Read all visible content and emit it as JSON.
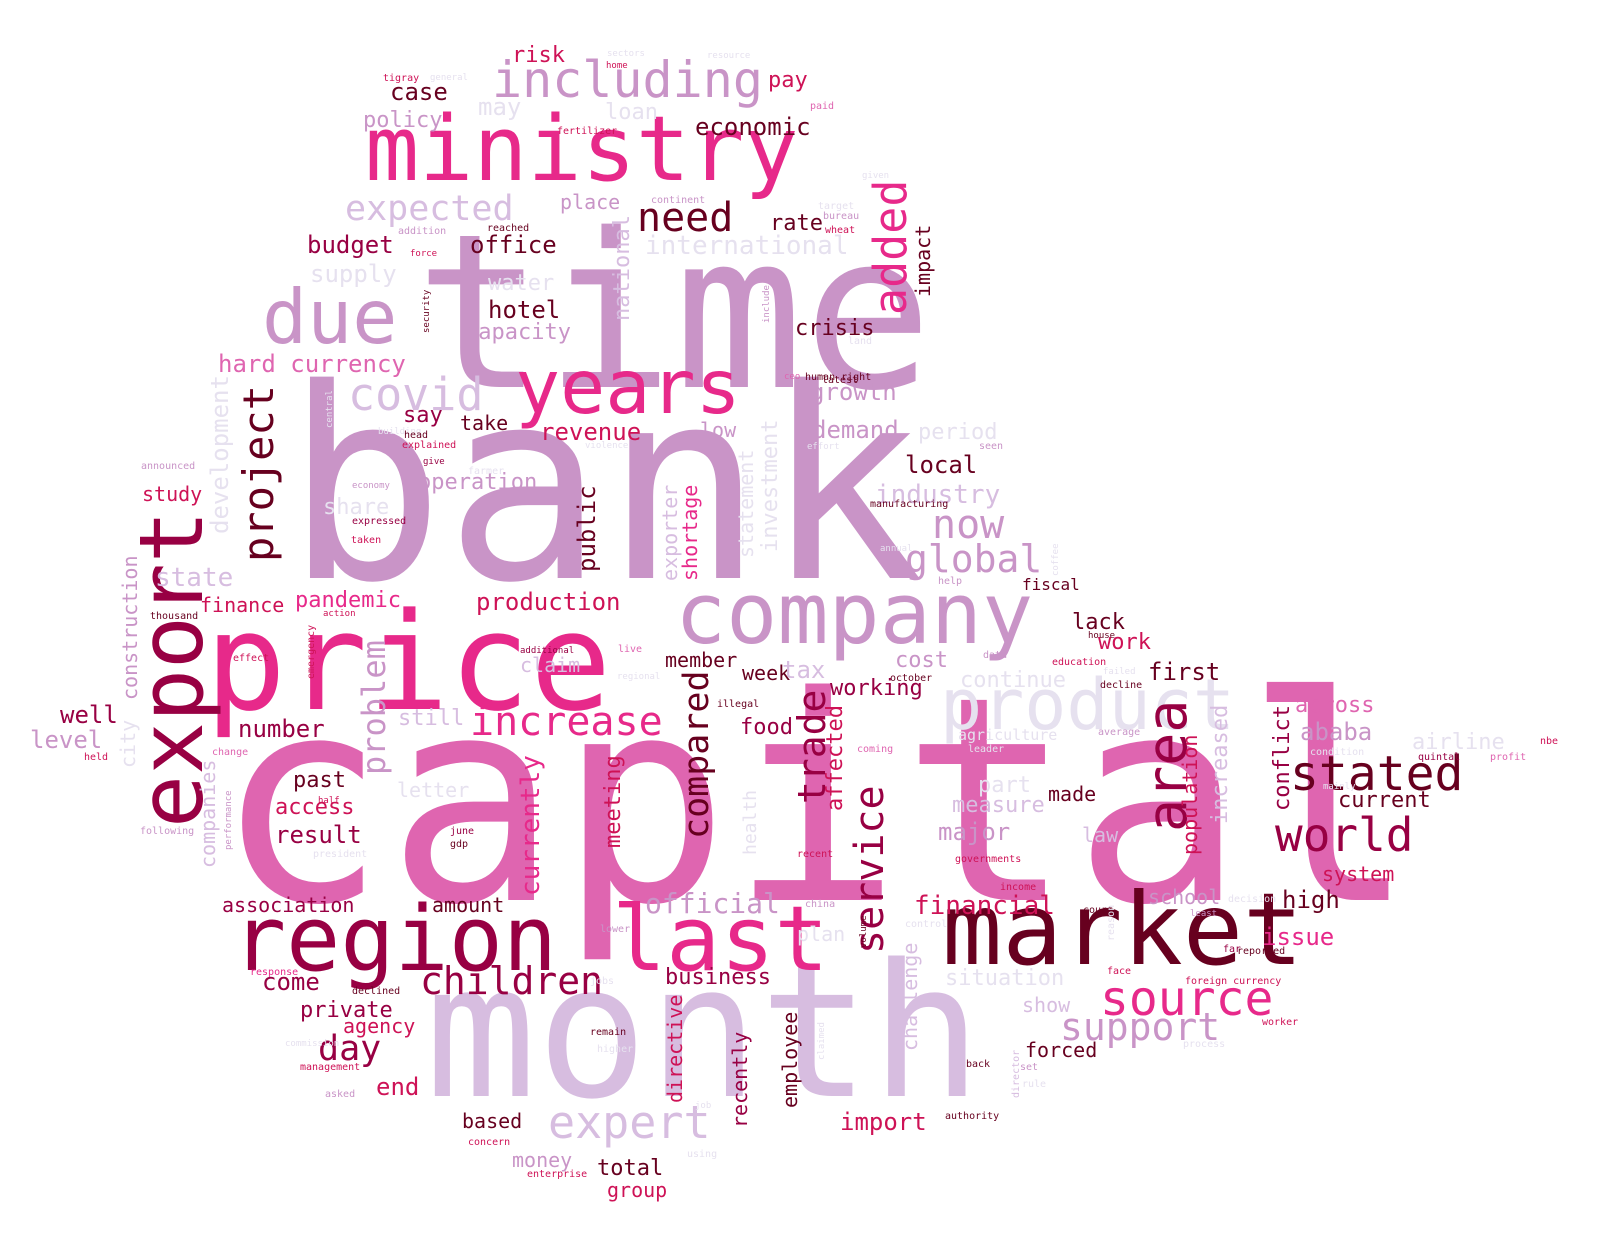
{
  "palette": {
    "pale": "#e6e1ef",
    "lilac": "#d7bde0",
    "mauve": "#c994c7",
    "pink": "#df65b0",
    "magenta": "#e7298a",
    "crimson": "#ce1256",
    "wine": "#980043",
    "dark": "#67001f"
  },
  "words": [
    {
      "text": "capital",
      "color": "pink"
    },
    {
      "text": "bank",
      "color": "mauve"
    },
    {
      "text": "time",
      "color": "mauve"
    },
    {
      "text": "month",
      "color": "lilac"
    },
    {
      "text": "price",
      "color": "magenta"
    },
    {
      "text": "market",
      "color": "dark"
    },
    {
      "text": "region",
      "color": "wine"
    },
    {
      "text": "last",
      "color": "magenta"
    },
    {
      "text": "company",
      "color": "mauve"
    },
    {
      "text": "ministry",
      "color": "magenta"
    },
    {
      "text": "years",
      "color": "magenta"
    },
    {
      "text": "export",
      "color": "wine"
    },
    {
      "text": "product",
      "color": "pale"
    },
    {
      "text": "due",
      "color": "mauve"
    },
    {
      "text": "including",
      "color": "mauve"
    },
    {
      "text": "added",
      "color": "magenta"
    },
    {
      "text": "area",
      "color": "wine"
    },
    {
      "text": "stated",
      "color": "dark"
    },
    {
      "text": "world",
      "color": "wine"
    },
    {
      "text": "source",
      "color": "magenta"
    },
    {
      "text": "expert",
      "color": "lilac"
    },
    {
      "text": "increase",
      "color": "magenta"
    },
    {
      "text": "children",
      "color": "wine"
    },
    {
      "text": "service",
      "color": "wine"
    },
    {
      "text": "project",
      "color": "dark"
    },
    {
      "text": "covid",
      "color": "lilac"
    },
    {
      "text": "now",
      "color": "mauve"
    },
    {
      "text": "global",
      "color": "mauve"
    },
    {
      "text": "need",
      "color": "dark"
    },
    {
      "text": "expected",
      "color": "lilac"
    },
    {
      "text": "support",
      "color": "mauve"
    },
    {
      "text": "day",
      "color": "wine"
    },
    {
      "text": "trade",
      "color": "wine"
    },
    {
      "text": "compared",
      "color": "dark"
    },
    {
      "text": "problem",
      "color": "mauve"
    },
    {
      "text": "official",
      "color": "mauve"
    },
    {
      "text": "currently",
      "color": "magenta"
    },
    {
      "text": "economic",
      "color": "dark"
    },
    {
      "text": "international",
      "color": "pale"
    },
    {
      "text": "office",
      "color": "dark"
    },
    {
      "text": "budget",
      "color": "wine"
    },
    {
      "text": "rate",
      "color": "dark"
    },
    {
      "text": "case",
      "color": "dark"
    },
    {
      "text": "risk",
      "color": "crimson"
    },
    {
      "text": "pay",
      "color": "crimson"
    },
    {
      "text": "may",
      "color": "pale"
    },
    {
      "text": "loan",
      "color": "pale"
    },
    {
      "text": "policy",
      "color": "mauve"
    },
    {
      "text": "place",
      "color": "mauve"
    },
    {
      "text": "supply",
      "color": "pale"
    },
    {
      "text": "hotel",
      "color": "dark"
    },
    {
      "text": "water",
      "color": "pale"
    },
    {
      "text": "capacity",
      "color": "mauve"
    },
    {
      "text": "national",
      "color": "lilac"
    },
    {
      "text": "impact",
      "color": "dark"
    },
    {
      "text": "crisis",
      "color": "dark"
    },
    {
      "text": "hard currency",
      "color": "pink"
    },
    {
      "text": "say",
      "color": "wine"
    },
    {
      "text": "take",
      "color": "dark"
    },
    {
      "text": "revenue",
      "color": "crimson"
    },
    {
      "text": "growth",
      "color": "mauve"
    },
    {
      "text": "demand",
      "color": "mauve"
    },
    {
      "text": "period",
      "color": "pale"
    },
    {
      "text": "low",
      "color": "mauve"
    },
    {
      "text": "local",
      "color": "dark"
    },
    {
      "text": "industry",
      "color": "lilac"
    },
    {
      "text": "operation",
      "color": "mauve"
    },
    {
      "text": "development",
      "color": "pale"
    },
    {
      "text": "study",
      "color": "crimson"
    },
    {
      "text": "share",
      "color": "pale"
    },
    {
      "text": "public",
      "color": "dark"
    },
    {
      "text": "exporter",
      "color": "lilac"
    },
    {
      "text": "shortage",
      "color": "magenta"
    },
    {
      "text": "statement",
      "color": "pale"
    },
    {
      "text": "investment",
      "color": "pale"
    },
    {
      "text": "state",
      "color": "lilac"
    },
    {
      "text": "pandemic",
      "color": "magenta"
    },
    {
      "text": "production",
      "color": "crimson"
    },
    {
      "text": "finance",
      "color": "crimson"
    },
    {
      "text": "construction",
      "color": "mauve"
    },
    {
      "text": "lack",
      "color": "dark"
    },
    {
      "text": "work",
      "color": "crimson"
    },
    {
      "text": "cost",
      "color": "mauve"
    },
    {
      "text": "member",
      "color": "dark"
    },
    {
      "text": "week",
      "color": "dark"
    },
    {
      "text": "tax",
      "color": "lilac"
    },
    {
      "text": "claim",
      "color": "lilac"
    },
    {
      "text": "working",
      "color": "wine"
    },
    {
      "text": "continue",
      "color": "pale"
    },
    {
      "text": "first",
      "color": "dark"
    },
    {
      "text": "well",
      "color": "wine"
    },
    {
      "text": "level",
      "color": "mauve"
    },
    {
      "text": "number",
      "color": "wine"
    },
    {
      "text": "still",
      "color": "lilac"
    },
    {
      "text": "food",
      "color": "wine"
    },
    {
      "text": "affected",
      "color": "crimson"
    },
    {
      "text": "across",
      "color": "pink"
    },
    {
      "text": "ababa",
      "color": "mauve"
    },
    {
      "text": "airline",
      "color": "pale"
    },
    {
      "text": "agriculture",
      "color": "pale"
    },
    {
      "text": "city",
      "color": "pale"
    },
    {
      "text": "past",
      "color": "dark"
    },
    {
      "text": "access",
      "color": "crimson"
    },
    {
      "text": "result",
      "color": "wine"
    },
    {
      "text": "letter",
      "color": "pale"
    },
    {
      "text": "part",
      "color": "pale"
    },
    {
      "text": "measure",
      "color": "lilac"
    },
    {
      "text": "major",
      "color": "mauve"
    },
    {
      "text": "made",
      "color": "dark"
    },
    {
      "text": "law",
      "color": "lilac"
    },
    {
      "text": "current",
      "color": "dark"
    },
    {
      "text": "conflict",
      "color": "wine"
    },
    {
      "text": "population",
      "color": "crimson"
    },
    {
      "text": "increased",
      "color": "lilac"
    },
    {
      "text": "companies",
      "color": "lilac"
    },
    {
      "text": "meeting",
      "color": "crimson"
    },
    {
      "text": "health",
      "color": "pale"
    },
    {
      "text": "system",
      "color": "crimson"
    },
    {
      "text": "association",
      "color": "wine"
    },
    {
      "text": "amount",
      "color": "dark"
    },
    {
      "text": "financial",
      "color": "crimson"
    },
    {
      "text": "high",
      "color": "dark"
    },
    {
      "text": "school",
      "color": "mauve"
    },
    {
      "text": "issue",
      "color": "magenta"
    },
    {
      "text": "business",
      "color": "wine"
    },
    {
      "text": "plan",
      "color": "pale"
    },
    {
      "text": "challenge",
      "color": "lilac"
    },
    {
      "text": "situation",
      "color": "pale"
    },
    {
      "text": "come",
      "color": "wine"
    },
    {
      "text": "private",
      "color": "wine"
    },
    {
      "text": "agency",
      "color": "crimson"
    },
    {
      "text": "show",
      "color": "lilac"
    },
    {
      "text": "forced",
      "color": "dark"
    },
    {
      "text": "directive",
      "color": "crimson"
    },
    {
      "text": "employee",
      "color": "dark"
    },
    {
      "text": "recently",
      "color": "wine"
    },
    {
      "text": "end",
      "color": "crimson"
    },
    {
      "text": "import",
      "color": "crimson"
    },
    {
      "text": "based",
      "color": "dark"
    },
    {
      "text": "money",
      "color": "mauve"
    },
    {
      "text": "total",
      "color": "dark"
    },
    {
      "text": "group",
      "color": "crimson"
    },
    {
      "text": "human right",
      "color": "dark"
    },
    {
      "text": "manufacturing",
      "color": "dark"
    },
    {
      "text": "foreign currency",
      "color": "crimson"
    },
    {
      "text": "tigray",
      "color": "crimson"
    },
    {
      "text": "general",
      "color": "pale"
    },
    {
      "text": "home",
      "color": "crimson"
    },
    {
      "text": "sectors",
      "color": "pale"
    },
    {
      "text": "resource",
      "color": "pale"
    },
    {
      "text": "paid",
      "color": "pink"
    },
    {
      "text": "fertilizer",
      "color": "crimson"
    },
    {
      "text": "continent",
      "color": "mauve"
    },
    {
      "text": "given",
      "color": "pale"
    },
    {
      "text": "target",
      "color": "pale"
    },
    {
      "text": "bureau",
      "color": "mauve"
    },
    {
      "text": "wheat",
      "color": "crimson"
    },
    {
      "text": "reached",
      "color": "dark"
    },
    {
      "text": "addition",
      "color": "mauve"
    },
    {
      "text": "force",
      "color": "crimson"
    },
    {
      "text": "security",
      "color": "dark"
    },
    {
      "text": "include",
      "color": "mauve"
    },
    {
      "text": "land",
      "color": "pale"
    },
    {
      "text": "ceo",
      "color": "pink"
    },
    {
      "text": "latest",
      "color": "dark"
    },
    {
      "text": "central",
      "color": "pale"
    },
    {
      "text": "building",
      "color": "pale"
    },
    {
      "text": "head",
      "color": "dark"
    },
    {
      "text": "explained",
      "color": "crimson"
    },
    {
      "text": "violence",
      "color": "pale"
    },
    {
      "text": "effort",
      "color": "pale"
    },
    {
      "text": "seen",
      "color": "mauve"
    },
    {
      "text": "give",
      "color": "wine"
    },
    {
      "text": "farmer",
      "color": "pale"
    },
    {
      "text": "announced",
      "color": "mauve"
    },
    {
      "text": "economy",
      "color": "mauve"
    },
    {
      "text": "expressed",
      "color": "wine"
    },
    {
      "text": "taken",
      "color": "crimson"
    },
    {
      "text": "annual",
      "color": "pale"
    },
    {
      "text": "coffee",
      "color": "pale"
    },
    {
      "text": "help",
      "color": "mauve"
    },
    {
      "text": "fiscal",
      "color": "dark"
    },
    {
      "text": "thousand",
      "color": "dark"
    },
    {
      "text": "action",
      "color": "crimson"
    },
    {
      "text": "emergency",
      "color": "crimson"
    },
    {
      "text": "additional",
      "color": "wine"
    },
    {
      "text": "live",
      "color": "pink"
    },
    {
      "text": "regional",
      "color": "pale"
    },
    {
      "text": "illegal",
      "color": "dark"
    },
    {
      "text": "october",
      "color": "dark"
    },
    {
      "text": "data",
      "color": "mauve"
    },
    {
      "text": "house",
      "color": "dark"
    },
    {
      "text": "education",
      "color": "crimson"
    },
    {
      "text": "failed",
      "color": "pale"
    },
    {
      "text": "decline",
      "color": "dark"
    },
    {
      "text": "effect",
      "color": "crimson"
    },
    {
      "text": "change",
      "color": "pink"
    },
    {
      "text": "held",
      "color": "crimson"
    },
    {
      "text": "coming",
      "color": "pink"
    },
    {
      "text": "leader",
      "color": "pale"
    },
    {
      "text": "average",
      "color": "mauve"
    },
    {
      "text": "condition",
      "color": "pale"
    },
    {
      "text": "quintal",
      "color": "wine"
    },
    {
      "text": "profit",
      "color": "pink"
    },
    {
      "text": "nbe",
      "color": "crimson"
    },
    {
      "text": "half",
      "color": "crimson"
    },
    {
      "text": "performance",
      "color": "mauve"
    },
    {
      "text": "following",
      "color": "mauve"
    },
    {
      "text": "june",
      "color": "wine"
    },
    {
      "text": "gdp",
      "color": "dark"
    },
    {
      "text": "president",
      "color": "pale"
    },
    {
      "text": "recent",
      "color": "crimson"
    },
    {
      "text": "governments",
      "color": "crimson"
    },
    {
      "text": "income",
      "color": "crimson"
    },
    {
      "text": "decision",
      "color": "pale"
    },
    {
      "text": "least",
      "color": "mauve"
    },
    {
      "text": "china",
      "color": "mauve"
    },
    {
      "text": "volume",
      "color": "dark"
    },
    {
      "text": "control",
      "color": "pale"
    },
    {
      "text": "court",
      "color": "dark"
    },
    {
      "text": "reason",
      "color": "pale"
    },
    {
      "text": "lower",
      "color": "mauve"
    },
    {
      "text": "far",
      "color": "wine"
    },
    {
      "text": "reported",
      "color": "dark"
    },
    {
      "text": "response",
      "color": "magenta"
    },
    {
      "text": "face",
      "color": "crimson"
    },
    {
      "text": "declined",
      "color": "dark"
    },
    {
      "text": "jobs",
      "color": "pale"
    },
    {
      "text": "worker",
      "color": "crimson"
    },
    {
      "text": "remain",
      "color": "dark"
    },
    {
      "text": "higher",
      "color": "pale"
    },
    {
      "text": "claimed",
      "color": "pale"
    },
    {
      "text": "process",
      "color": "pale"
    },
    {
      "text": "back",
      "color": "dark"
    },
    {
      "text": "director",
      "color": "lilac"
    },
    {
      "text": "set",
      "color": "mauve"
    },
    {
      "text": "rule",
      "color": "pale"
    },
    {
      "text": "management",
      "color": "crimson"
    },
    {
      "text": "asked",
      "color": "mauve"
    },
    {
      "text": "authority",
      "color": "dark"
    },
    {
      "text": "concern",
      "color": "crimson"
    },
    {
      "text": "using",
      "color": "pale"
    },
    {
      "text": "enterprise",
      "color": "crimson"
    },
    {
      "text": "commission",
      "color": "pale"
    },
    {
      "text": "job",
      "color": "pale"
    },
    {
      "text": "mainly",
      "color": "pale"
    }
  ]
}
